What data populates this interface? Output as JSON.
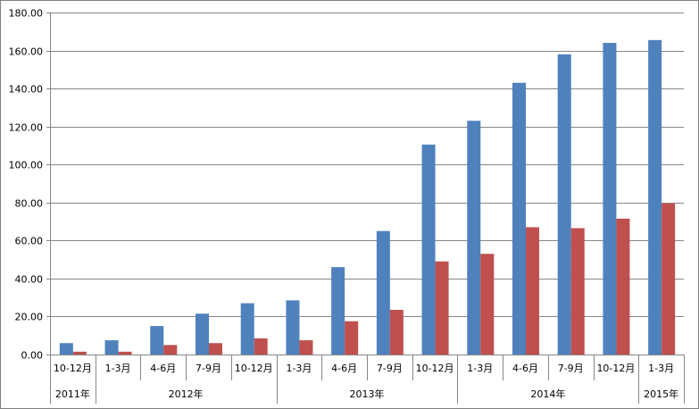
{
  "chart_data": {
    "type": "bar",
    "categories": [
      "10-12月",
      "1-3月",
      "4-6月",
      "7-9月",
      "10-12月",
      "1-3月",
      "4-6月",
      "7-9月",
      "10-12月",
      "1-3月",
      "4-6月",
      "7-9月",
      "10-12月",
      "1-3月"
    ],
    "groups": [
      {
        "label": "2011年",
        "span": 1
      },
      {
        "label": "2012年",
        "span": 4
      },
      {
        "label": "2013年",
        "span": 4
      },
      {
        "label": "2014年",
        "span": 4
      },
      {
        "label": "2015年",
        "span": 1
      }
    ],
    "series": [
      {
        "color": "#4F81BD",
        "values": [
          6.0,
          7.5,
          15.0,
          21.5,
          27.0,
          28.5,
          46.0,
          65.0,
          110.5,
          123.0,
          143.0,
          158.0,
          164.0,
          165.5
        ]
      },
      {
        "color": "#C0504D",
        "values": [
          1.5,
          1.5,
          5.0,
          6.0,
          8.5,
          7.5,
          17.5,
          23.5,
          49.0,
          53.0,
          67.0,
          66.5,
          71.5,
          79.5
        ]
      }
    ],
    "ylim": [
      0,
      180
    ],
    "yticks": [
      "0.00",
      "20.00",
      "40.00",
      "60.00",
      "80.00",
      "100.00",
      "120.00",
      "140.00",
      "160.00",
      "180.00"
    ],
    "grid": true
  }
}
